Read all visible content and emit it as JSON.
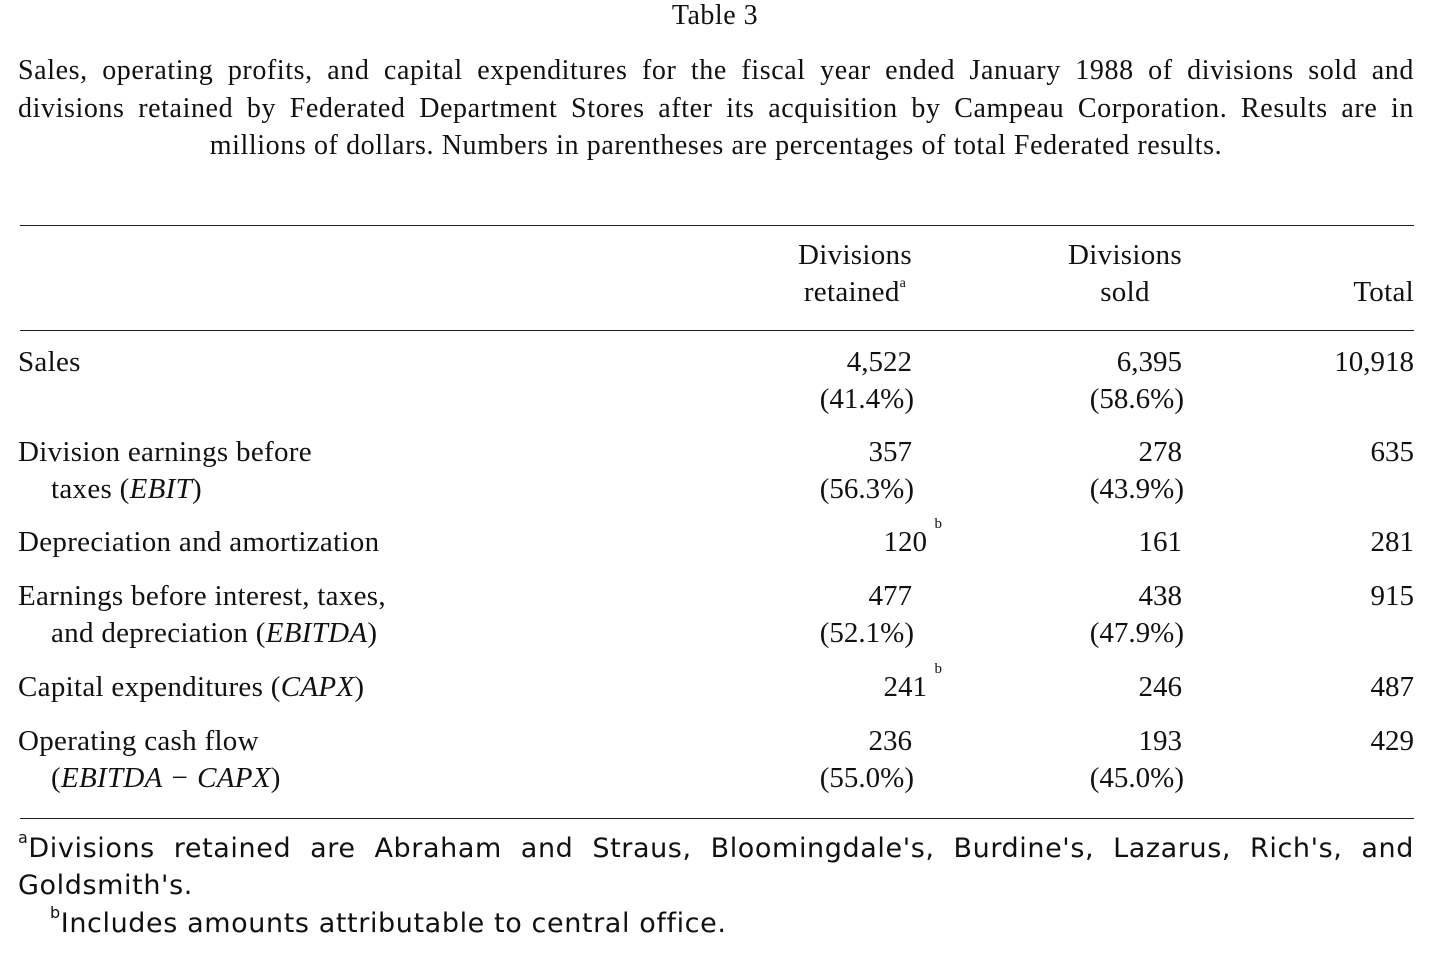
{
  "table_label": "Table 3",
  "caption": "Sales, operating profits, and capital expenditures for the fiscal year ended January 1988 of divisions sold and divisions retained by Federated Department Stores after its acquisition by Campeau Corporation. Results are in millions of dollars. Numbers in parentheses are percentages of total Federated results.",
  "columns": {
    "retained_line1": "Divisions",
    "retained_line2": "retained",
    "retained_mark": "a",
    "sold_line1": "Divisions",
    "sold_line2": "sold",
    "total": "Total"
  },
  "rows": {
    "sales": {
      "label1": "Sales",
      "retained": "4,522",
      "retained_pct": "(41.4%)",
      "sold": "6,395",
      "sold_pct": "(58.6%)",
      "total": "10,918"
    },
    "ebit": {
      "label1": "Division earnings before",
      "label2_pre": "taxes (",
      "label2_abbr": "EBIT",
      "label2_post": ")",
      "retained": "357",
      "retained_pct": "(56.3%)",
      "sold": "278",
      "sold_pct": "(43.9%)",
      "total": "635"
    },
    "depreciation": {
      "label1": "Depreciation and amortization",
      "retained": "120",
      "retained_mark": "b",
      "sold": "161",
      "total": "281"
    },
    "ebitda": {
      "label1": "Earnings before interest, taxes,",
      "label2_pre": "and depreciation (",
      "label2_abbr": "EBITDA",
      "label2_post": ")",
      "retained": "477",
      "retained_pct": "(52.1%)",
      "sold": "438",
      "sold_pct": "(47.9%)",
      "total": "915"
    },
    "capx": {
      "label1_pre": "Capital expenditures (",
      "label1_abbr": "CAPX",
      "label1_post": ")",
      "retained": "241",
      "retained_mark": "b",
      "sold": "246",
      "total": "487"
    },
    "cashflow": {
      "label1": "Operating cash flow",
      "label2_pre": "(",
      "label2_abbr": "EBITDA − CAPX",
      "label2_post": ")",
      "retained": "236",
      "retained_pct": "(55.0%)",
      "sold": "193",
      "sold_pct": "(45.0%)",
      "total": "429"
    }
  },
  "footnotes": {
    "a_mark": "a",
    "a_text": "Divisions retained are Abraham and Straus, Bloomingdale's, Burdine's, Lazarus, Rich's, and Goldsmith's.",
    "b_mark": "b",
    "b_text": "Includes amounts attributable to central office."
  }
}
